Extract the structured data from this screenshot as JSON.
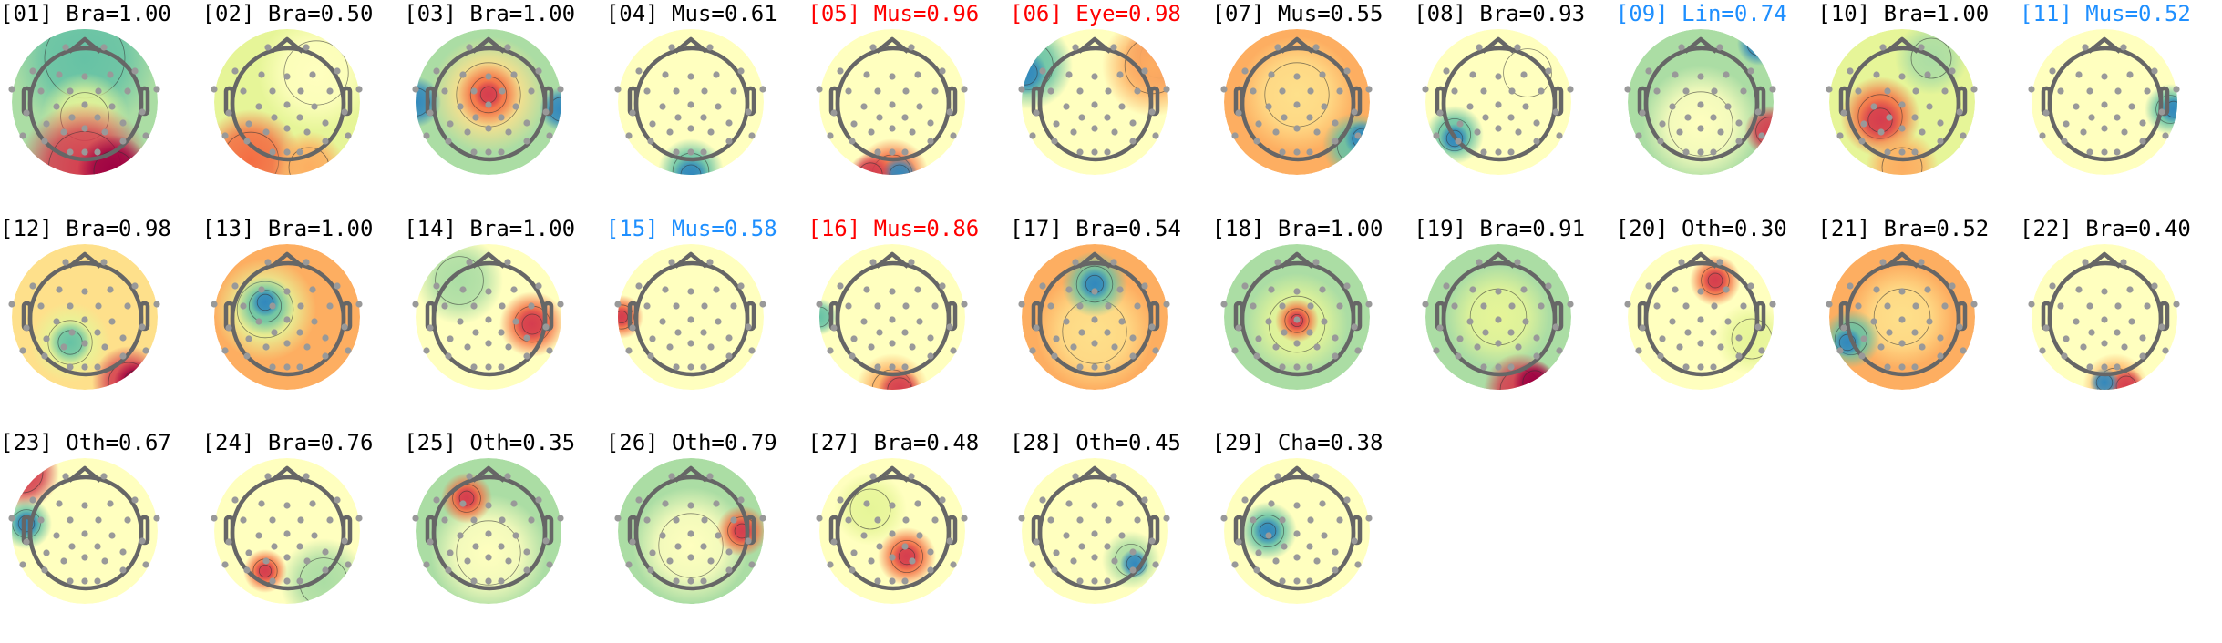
{
  "chart_data": {
    "type": "heatmap",
    "layout": "grid of scalp topographic maps, 11 columns",
    "colormap": [
      "#3288bd",
      "#66c2a5",
      "#abdda4",
      "#e6f598",
      "#ffffbf",
      "#fee08b",
      "#fdae61",
      "#f46d43",
      "#d53e4f",
      "#9e0142"
    ],
    "label_colors": {
      "default": "#000000",
      "red": "#ff0000",
      "blue": "#1e8fff"
    },
    "components": [
      {
        "title": "[01] Bra=1.00",
        "color": "#000000"
      },
      {
        "title": "[02] Bra=0.50",
        "color": "#000000"
      },
      {
        "title": "[03] Bra=1.00",
        "color": "#000000"
      },
      {
        "title": "[04] Mus=0.61",
        "color": "#000000"
      },
      {
        "title": "[05] Mus=0.96",
        "color": "#ff0000"
      },
      {
        "title": "[06] Eye=0.98",
        "color": "#ff0000"
      },
      {
        "title": "[07] Mus=0.55",
        "color": "#000000"
      },
      {
        "title": "[08] Bra=0.93",
        "color": "#000000"
      },
      {
        "title": "[09] Lin=0.74",
        "color": "#1e8fff"
      },
      {
        "title": "[10] Bra=1.00",
        "color": "#000000"
      },
      {
        "title": "[11] Mus=0.52",
        "color": "#1e8fff"
      },
      {
        "title": "[12] Bra=0.98",
        "color": "#000000"
      },
      {
        "title": "[13] Bra=1.00",
        "color": "#000000"
      },
      {
        "title": "[14] Bra=1.00",
        "color": "#000000"
      },
      {
        "title": "[15] Mus=0.58",
        "color": "#1e8fff"
      },
      {
        "title": "[16] Mus=0.86",
        "color": "#ff0000"
      },
      {
        "title": "[17] Bra=0.54",
        "color": "#000000"
      },
      {
        "title": "[18] Bra=1.00",
        "color": "#000000"
      },
      {
        "title": "[19] Bra=0.91",
        "color": "#000000"
      },
      {
        "title": "[20] Oth=0.30",
        "color": "#000000"
      },
      {
        "title": "[21] Bra=0.52",
        "color": "#000000"
      },
      {
        "title": "[22] Bra=0.40",
        "color": "#000000"
      },
      {
        "title": "[23] Oth=0.67",
        "color": "#000000"
      },
      {
        "title": "[24] Bra=0.76",
        "color": "#000000"
      },
      {
        "title": "[25] Oth=0.35",
        "color": "#000000"
      },
      {
        "title": "[26] Oth=0.79",
        "color": "#000000"
      },
      {
        "title": "[27] Bra=0.48",
        "color": "#000000"
      },
      {
        "title": "[28] Oth=0.45",
        "color": "#000000"
      },
      {
        "title": "[29] Cha=0.38",
        "color": "#000000"
      }
    ]
  }
}
